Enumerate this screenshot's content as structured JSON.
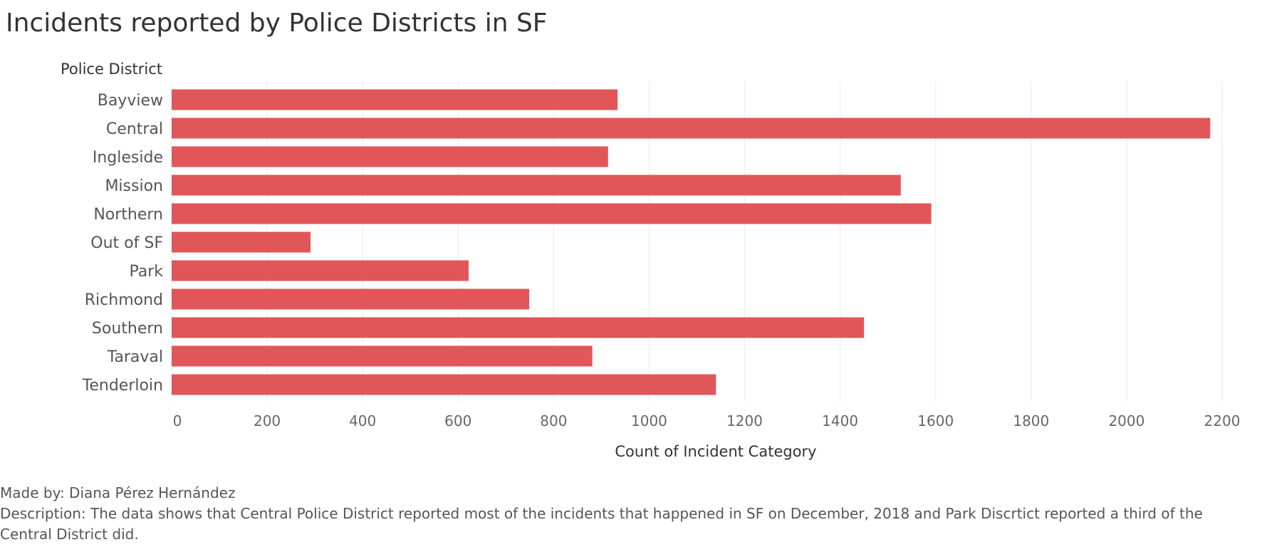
{
  "chart_data": {
    "type": "bar",
    "orientation": "horizontal",
    "title": "Incidents reported by Police Districts in SF",
    "ylabel": "Police District",
    "xlabel": "Count of Incident Category",
    "categories": [
      "Bayview",
      "Central",
      "Ingleside",
      "Mission",
      "Northern",
      "Out of SF",
      "Park",
      "Richmond",
      "Southern",
      "Taraval",
      "Tenderloin"
    ],
    "values": [
      934,
      2175,
      914,
      1527,
      1591,
      291,
      622,
      749,
      1450,
      881,
      1140
    ],
    "xlim": [
      0,
      2200
    ],
    "xticks": [
      "0",
      "200",
      "400",
      "600",
      "800",
      "1000",
      "1200",
      "1400",
      "1600",
      "1800",
      "2000",
      "2200"
    ],
    "grid": true,
    "bar_color": "#e15759"
  },
  "footer": {
    "author": "Made by: Diana Pérez Hernández",
    "description": "Description: The data shows that Central Police District reported most of the incidents that happened in SF on December, 2018 and Park Discrtict reported a third of the Central District did."
  }
}
